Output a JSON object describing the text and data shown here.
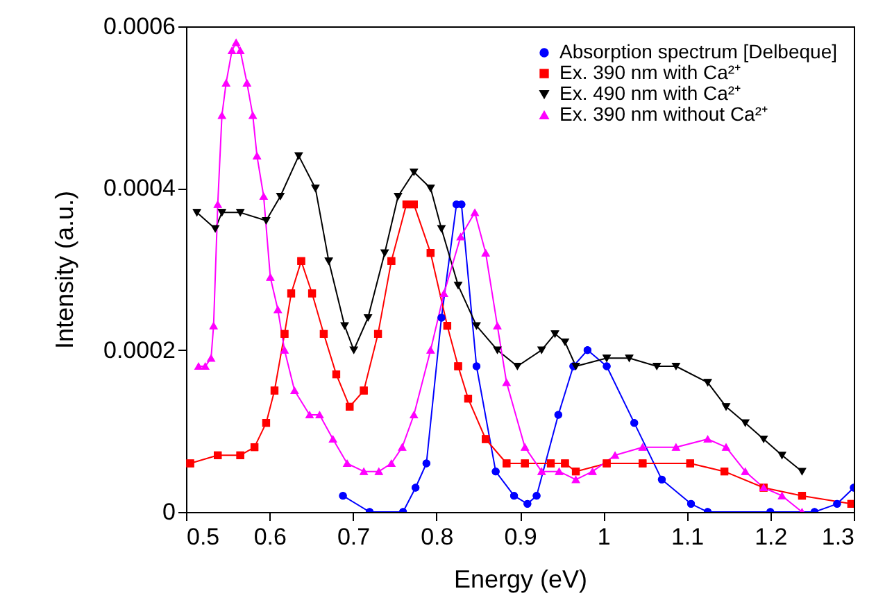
{
  "chart_data": {
    "type": "line",
    "xlabel": "Energy (eV)",
    "ylabel": "Intensity (a.u.)",
    "xlim": [
      0.5,
      1.3
    ],
    "ylim": [
      0,
      0.0006
    ],
    "xticks": [
      0.5,
      0.6,
      0.7,
      0.8,
      0.9,
      1,
      1.1,
      1.2,
      1.3
    ],
    "yticks": [
      0,
      0.0002,
      0.0004,
      0.0006
    ],
    "grid": false,
    "legend": "top right",
    "line_style": "solid",
    "series": [
      {
        "name": "Absorption spectrum [Delbeque]",
        "color": "#0000ff",
        "marker": "circle",
        "x": [
          0.688,
          0.72,
          0.76,
          0.775,
          0.788,
          0.806,
          0.824,
          0.83,
          0.848,
          0.871,
          0.893,
          0.909,
          0.92,
          0.946,
          0.964,
          0.981,
          1.004,
          1.037,
          1.07,
          1.105,
          1.125,
          1.2,
          1.253,
          1.28,
          1.3
        ],
        "values": [
          2e-05,
          0,
          0,
          3e-05,
          6e-05,
          0.00024,
          0.00038,
          0.00038,
          0.00018,
          5e-05,
          2e-05,
          1e-05,
          2e-05,
          0.00012,
          0.00018,
          0.0002,
          0.00018,
          0.00011,
          4e-05,
          1e-05,
          0,
          0,
          0,
          1e-05,
          3e-05
        ]
      },
      {
        "name": "Ex. 390 nm with Ca²⁺",
        "color": "#ff0000",
        "marker": "square",
        "x": [
          0.505,
          0.538,
          0.565,
          0.582,
          0.596,
          0.606,
          0.618,
          0.626,
          0.638,
          0.651,
          0.665,
          0.68,
          0.696,
          0.713,
          0.73,
          0.746,
          0.764,
          0.773,
          0.793,
          0.813,
          0.826,
          0.838,
          0.859,
          0.884,
          0.906,
          0.937,
          0.954,
          0.967,
          1.004,
          1.047,
          1.104,
          1.145,
          1.192,
          1.238,
          1.297
        ],
        "values": [
          6e-05,
          7e-05,
          7e-05,
          8e-05,
          0.00011,
          0.00015,
          0.00022,
          0.00027,
          0.00031,
          0.00027,
          0.00022,
          0.00017,
          0.00013,
          0.00015,
          0.00022,
          0.00031,
          0.00038,
          0.00038,
          0.00032,
          0.00023,
          0.00018,
          0.00014,
          9e-05,
          6e-05,
          6e-05,
          6e-05,
          6e-05,
          5e-05,
          6e-05,
          6e-05,
          6e-05,
          5e-05,
          3e-05,
          2e-05,
          1e-05
        ]
      },
      {
        "name": "Ex. 490 nm with Ca²⁺",
        "color": "#000000",
        "marker": "triangle-down",
        "x": [
          0.513,
          0.535,
          0.543,
          0.565,
          0.596,
          0.613,
          0.635,
          0.655,
          0.671,
          0.69,
          0.701,
          0.718,
          0.738,
          0.754,
          0.773,
          0.793,
          0.806,
          0.826,
          0.848,
          0.873,
          0.897,
          0.926,
          0.942,
          0.954,
          0.967,
          1.004,
          1.031,
          1.064,
          1.087,
          1.125,
          1.147,
          1.17,
          1.192,
          1.214,
          1.238
        ],
        "values": [
          0.00037,
          0.00035,
          0.00037,
          0.00037,
          0.00036,
          0.00039,
          0.00044,
          0.0004,
          0.00031,
          0.00023,
          0.0002,
          0.00024,
          0.00032,
          0.00039,
          0.00042,
          0.0004,
          0.00035,
          0.00028,
          0.00023,
          0.0002,
          0.00018,
          0.0002,
          0.00022,
          0.00021,
          0.00018,
          0.00019,
          0.00019,
          0.00018,
          0.00018,
          0.00016,
          0.00013,
          0.00011,
          9e-05,
          7e-05,
          5e-05
        ]
      },
      {
        "name": "Ex. 390 nm without Ca²⁺",
        "color": "#ff00ff",
        "marker": "triangle",
        "x": [
          0.515,
          0.523,
          0.53,
          0.533,
          0.538,
          0.543,
          0.548,
          0.555,
          0.56,
          0.565,
          0.573,
          0.58,
          0.585,
          0.593,
          0.601,
          0.61,
          0.618,
          0.63,
          0.648,
          0.66,
          0.676,
          0.693,
          0.713,
          0.731,
          0.746,
          0.759,
          0.773,
          0.793,
          0.809,
          0.829,
          0.846,
          0.859,
          0.873,
          0.884,
          0.906,
          0.926,
          0.947,
          0.967,
          0.987,
          1.014,
          1.047,
          1.087,
          1.125,
          1.147,
          1.17,
          1.192,
          1.214,
          1.238
        ],
        "values": [
          0.00018,
          0.00018,
          0.00019,
          0.00023,
          0.00038,
          0.00049,
          0.00053,
          0.00057,
          0.00058,
          0.00057,
          0.00053,
          0.00049,
          0.00044,
          0.00039,
          0.00029,
          0.00025,
          0.0002,
          0.00015,
          0.00012,
          0.00012,
          9e-05,
          6e-05,
          5e-05,
          5e-05,
          6e-05,
          8e-05,
          0.00012,
          0.0002,
          0.00027,
          0.00034,
          0.00037,
          0.00032,
          0.00023,
          0.00016,
          8e-05,
          5e-05,
          5e-05,
          4e-05,
          5e-05,
          7e-05,
          8e-05,
          8e-05,
          9e-05,
          8e-05,
          5e-05,
          3e-05,
          2e-05,
          0
        ]
      }
    ]
  }
}
